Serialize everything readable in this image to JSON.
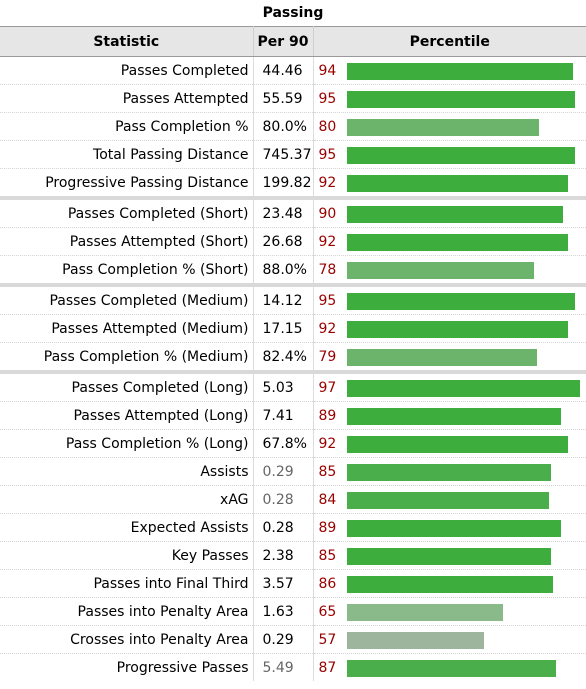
{
  "caption": "Passing",
  "headers": {
    "statistic": "Statistic",
    "per90": "Per 90",
    "percentile": "Percentile"
  },
  "rows": [
    {
      "stat": "Passes Completed",
      "per90": "44.46",
      "pct": "94",
      "color": "#3dae3d"
    },
    {
      "stat": "Passes Attempted",
      "per90": "55.59",
      "pct": "95",
      "color": "#3dae3d"
    },
    {
      "stat": "Pass Completion %",
      "per90": "80.0%",
      "pct": "80",
      "color": "#6cb36c"
    },
    {
      "stat": "Total Passing Distance",
      "per90": "745.37",
      "pct": "95",
      "color": "#3dae3d"
    },
    {
      "stat": "Progressive Passing Distance",
      "per90": "199.82",
      "pct": "92",
      "color": "#3dae3d"
    },
    {
      "stat": "Passes Completed (Short)",
      "per90": "23.48",
      "pct": "90",
      "color": "#3dae3d",
      "group_start": true
    },
    {
      "stat": "Passes Attempted (Short)",
      "per90": "26.68",
      "pct": "92",
      "color": "#3dae3d"
    },
    {
      "stat": "Pass Completion % (Short)",
      "per90": "88.0%",
      "pct": "78",
      "color": "#6cb36c"
    },
    {
      "stat": "Passes Completed (Medium)",
      "per90": "14.12",
      "pct": "95",
      "color": "#3dae3d",
      "group_start": true
    },
    {
      "stat": "Passes Attempted (Medium)",
      "per90": "17.15",
      "pct": "92",
      "color": "#3dae3d"
    },
    {
      "stat": "Pass Completion % (Medium)",
      "per90": "82.4%",
      "pct": "79",
      "color": "#6cb36c"
    },
    {
      "stat": "Passes Completed (Long)",
      "per90": "5.03",
      "pct": "97",
      "color": "#3dae3d",
      "group_start": true
    },
    {
      "stat": "Passes Attempted (Long)",
      "per90": "7.41",
      "pct": "89",
      "color": "#3dae3d"
    },
    {
      "stat": "Pass Completion % (Long)",
      "per90": "67.8%",
      "pct": "92",
      "color": "#3dae3d"
    },
    {
      "stat": "Assists",
      "per90": "0.29",
      "pct": "85",
      "color": "#4aaf4a",
      "grey": true
    },
    {
      "stat": "xAG",
      "per90": "0.28",
      "pct": "84",
      "color": "#4aaf4a",
      "grey": true
    },
    {
      "stat": "Expected Assists",
      "per90": "0.28",
      "pct": "89",
      "color": "#3dae3d"
    },
    {
      "stat": "Key Passes",
      "per90": "2.38",
      "pct": "85",
      "color": "#3dae3d"
    },
    {
      "stat": "Passes into Final Third",
      "per90": "3.57",
      "pct": "86",
      "color": "#3dae3d"
    },
    {
      "stat": "Passes into Penalty Area",
      "per90": "1.63",
      "pct": "65",
      "color": "#8aba8a"
    },
    {
      "stat": "Crosses into Penalty Area",
      "per90": "0.29",
      "pct": "57",
      "color": "#9db59d"
    },
    {
      "stat": "Progressive Passes",
      "per90": "5.49",
      "pct": "87",
      "color": "#4aaf4a",
      "grey": true
    }
  ],
  "colors": {
    "pct_text": "#990000"
  },
  "chart_data": {
    "type": "bar",
    "title": "Passing",
    "categories": [
      "Passes Completed",
      "Passes Attempted",
      "Pass Completion %",
      "Total Passing Distance",
      "Progressive Passing Distance",
      "Passes Completed (Short)",
      "Passes Attempted (Short)",
      "Pass Completion % (Short)",
      "Passes Completed (Medium)",
      "Passes Attempted (Medium)",
      "Pass Completion % (Medium)",
      "Passes Completed (Long)",
      "Passes Attempted (Long)",
      "Pass Completion % (Long)",
      "Assists",
      "xAG",
      "Expected Assists",
      "Key Passes",
      "Passes into Final Third",
      "Passes into Penalty Area",
      "Crosses into Penalty Area",
      "Progressive Passes"
    ],
    "series": [
      {
        "name": "Percentile",
        "values": [
          94,
          95,
          80,
          95,
          92,
          90,
          92,
          78,
          95,
          92,
          79,
          97,
          89,
          92,
          85,
          84,
          89,
          85,
          86,
          65,
          57,
          87
        ]
      }
    ],
    "xlim": [
      0,
      100
    ]
  }
}
